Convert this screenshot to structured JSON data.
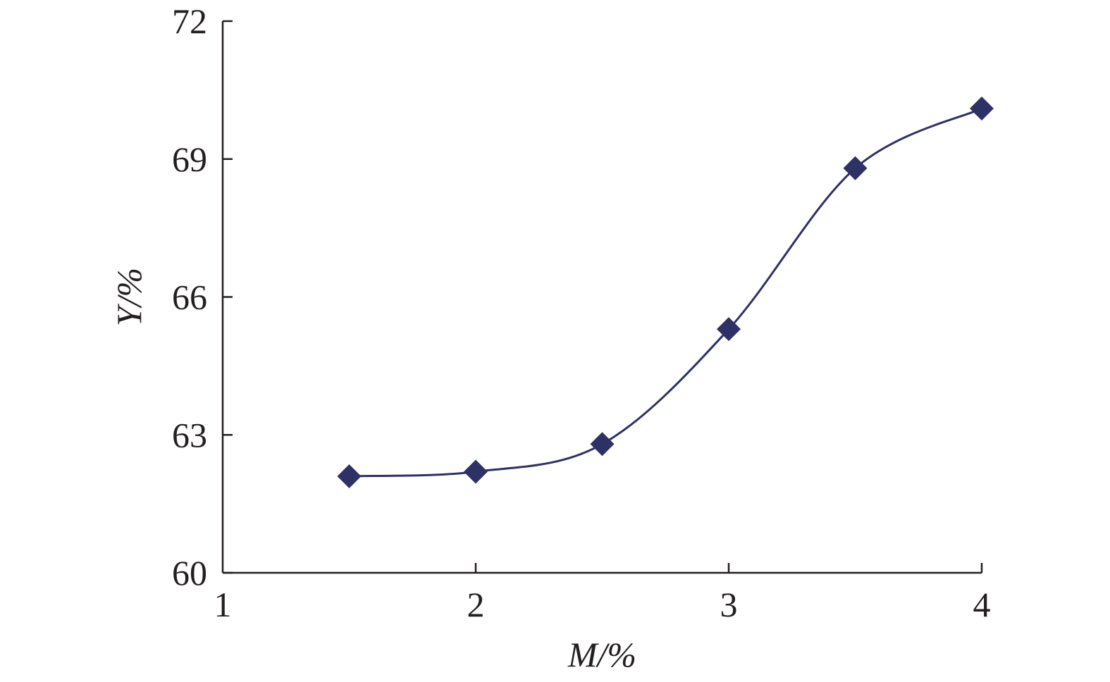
{
  "chart_data": {
    "type": "line",
    "title": "",
    "xlabel": "M/%",
    "ylabel": "Y/%",
    "xlim": [
      1,
      4
    ],
    "ylim": [
      60,
      72
    ],
    "xticks": [
      1,
      2,
      3,
      4
    ],
    "yticks": [
      60,
      63,
      66,
      69,
      72
    ],
    "grid": false,
    "legend": "none",
    "smooth": true,
    "marker": "diamond",
    "series": [
      {
        "x": [
          1.5,
          2.0,
          2.5,
          3.0,
          3.5,
          4.0
        ],
        "y": [
          62.1,
          62.2,
          62.8,
          65.3,
          68.8,
          70.1
        ],
        "color": "#2e3166"
      }
    ],
    "axis_color": "#231f20"
  }
}
